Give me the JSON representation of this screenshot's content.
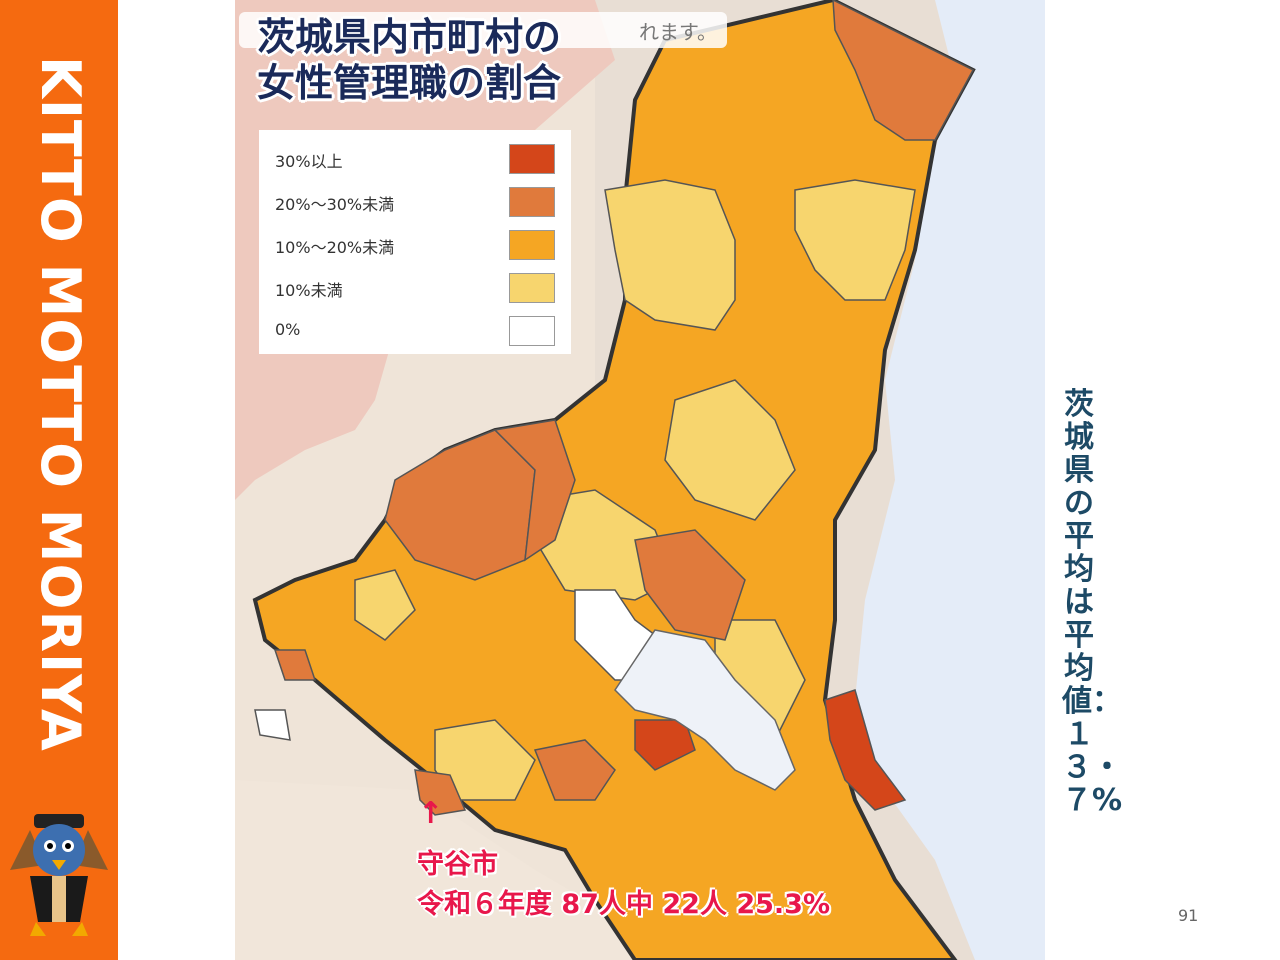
{
  "slide": {
    "brand": "KITTO MOTTO MORIYA",
    "page_number": "91"
  },
  "map": {
    "title_line1": "茨城県内市町村の",
    "title_line2": "女性管理職の割合",
    "notice_fragment": "れます。",
    "legend": [
      {
        "label": "30%以上",
        "color": "#d4461a"
      },
      {
        "label": "20%～30%未満",
        "color": "#e07a3c"
      },
      {
        "label": "10%～20%未満",
        "color": "#f5a623"
      },
      {
        "label": "10%未満",
        "color": "#f7d56e"
      },
      {
        "label": "0%",
        "color": "#ffffff"
      }
    ],
    "highlight": {
      "arrow": "↑",
      "city": "守谷市",
      "detail": "令和６年度 87人中 22人 25.3%"
    },
    "colors": {
      "sea": "#e4ecf8",
      "lake": "#eef2f8",
      "border": "#333333",
      "outside": "#e8ded4"
    }
  },
  "average": {
    "text": "茨城県の平均は平均値：１３・７%"
  },
  "colors": {
    "sidebar": "#f56a10",
    "highlight": "#e8174b",
    "average_text": "#1d4a66"
  }
}
